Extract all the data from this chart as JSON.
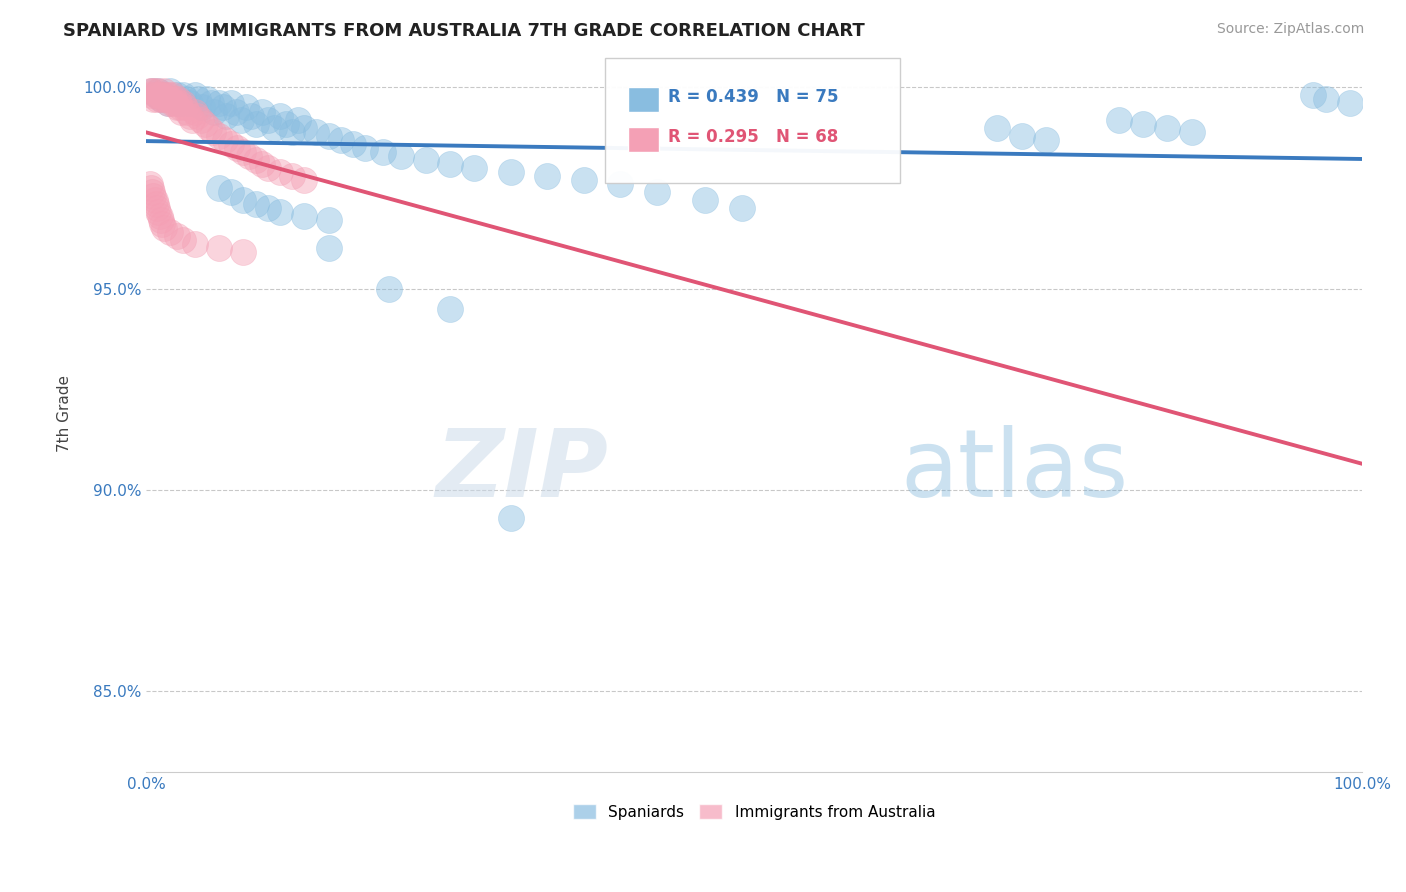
{
  "title": "SPANIARD VS IMMIGRANTS FROM AUSTRALIA 7TH GRADE CORRELATION CHART",
  "source": "Source: ZipAtlas.com",
  "ylabel": "7th Grade",
  "xlim": [
    0.0,
    1.0
  ],
  "ylim": [
    0.83,
    1.008
  ],
  "yticks": [
    0.85,
    0.9,
    0.95,
    1.0
  ],
  "ytick_labels": [
    "85.0%",
    "90.0%",
    "95.0%",
    "100.0%"
  ],
  "legend_r_blue": "R = 0.439",
  "legend_n_blue": "N = 75",
  "legend_r_pink": "R = 0.295",
  "legend_n_pink": "N = 68",
  "blue_color": "#89bde0",
  "pink_color": "#f4a0b5",
  "blue_line_color": "#3a7abf",
  "pink_line_color": "#e05575",
  "background_color": "#ffffff",
  "blue_scatter_x": [
    0.005,
    0.008,
    0.01,
    0.012,
    0.015,
    0.018,
    0.02,
    0.022,
    0.025,
    0.028,
    0.03,
    0.033,
    0.036,
    0.04,
    0.043,
    0.046,
    0.05,
    0.053,
    0.056,
    0.06,
    0.063,
    0.066,
    0.07,
    0.074,
    0.078,
    0.082,
    0.086,
    0.09,
    0.095,
    0.1,
    0.105,
    0.11,
    0.115,
    0.12,
    0.125,
    0.13,
    0.14,
    0.15,
    0.16,
    0.17,
    0.18,
    0.195,
    0.21,
    0.23,
    0.25,
    0.27,
    0.3,
    0.33,
    0.36,
    0.39,
    0.06,
    0.07,
    0.08,
    0.09,
    0.1,
    0.11,
    0.13,
    0.15,
    0.42,
    0.46,
    0.49,
    0.7,
    0.72,
    0.74,
    0.8,
    0.82,
    0.84,
    0.86,
    0.96,
    0.97,
    0.99,
    0.15,
    0.2,
    0.25,
    0.3
  ],
  "blue_scatter_y": [
    0.999,
    0.998,
    0.999,
    0.997,
    0.998,
    0.996,
    0.999,
    0.997,
    0.998,
    0.996,
    0.998,
    0.997,
    0.996,
    0.998,
    0.997,
    0.995,
    0.997,
    0.996,
    0.994,
    0.996,
    0.995,
    0.993,
    0.996,
    0.994,
    0.992,
    0.995,
    0.993,
    0.991,
    0.994,
    0.992,
    0.99,
    0.993,
    0.991,
    0.989,
    0.992,
    0.99,
    0.989,
    0.988,
    0.987,
    0.986,
    0.985,
    0.984,
    0.983,
    0.982,
    0.981,
    0.98,
    0.979,
    0.978,
    0.977,
    0.976,
    0.975,
    0.974,
    0.972,
    0.971,
    0.97,
    0.969,
    0.968,
    0.967,
    0.974,
    0.972,
    0.97,
    0.99,
    0.988,
    0.987,
    0.992,
    0.991,
    0.99,
    0.989,
    0.998,
    0.997,
    0.996,
    0.96,
    0.95,
    0.945,
    0.893
  ],
  "pink_scatter_x": [
    0.003,
    0.004,
    0.005,
    0.006,
    0.007,
    0.008,
    0.009,
    0.01,
    0.011,
    0.012,
    0.013,
    0.014,
    0.015,
    0.016,
    0.017,
    0.018,
    0.019,
    0.02,
    0.021,
    0.022,
    0.023,
    0.024,
    0.025,
    0.026,
    0.027,
    0.028,
    0.029,
    0.03,
    0.032,
    0.034,
    0.036,
    0.038,
    0.04,
    0.042,
    0.045,
    0.048,
    0.052,
    0.055,
    0.06,
    0.065,
    0.07,
    0.075,
    0.08,
    0.085,
    0.09,
    0.095,
    0.1,
    0.11,
    0.12,
    0.13,
    0.003,
    0.004,
    0.005,
    0.006,
    0.007,
    0.008,
    0.009,
    0.01,
    0.011,
    0.012,
    0.013,
    0.015,
    0.02,
    0.025,
    0.03,
    0.04,
    0.06,
    0.08
  ],
  "pink_scatter_y": [
    0.999,
    0.998,
    0.999,
    0.997,
    0.999,
    0.998,
    0.997,
    0.999,
    0.998,
    0.997,
    0.998,
    0.997,
    0.999,
    0.998,
    0.997,
    0.996,
    0.998,
    0.997,
    0.996,
    0.998,
    0.997,
    0.996,
    0.995,
    0.997,
    0.996,
    0.995,
    0.994,
    0.996,
    0.995,
    0.994,
    0.993,
    0.992,
    0.994,
    0.993,
    0.992,
    0.991,
    0.99,
    0.989,
    0.988,
    0.987,
    0.986,
    0.985,
    0.984,
    0.983,
    0.982,
    0.981,
    0.98,
    0.979,
    0.978,
    0.977,
    0.976,
    0.975,
    0.974,
    0.973,
    0.972,
    0.971,
    0.97,
    0.969,
    0.968,
    0.967,
    0.966,
    0.965,
    0.964,
    0.963,
    0.962,
    0.961,
    0.96,
    0.959
  ]
}
